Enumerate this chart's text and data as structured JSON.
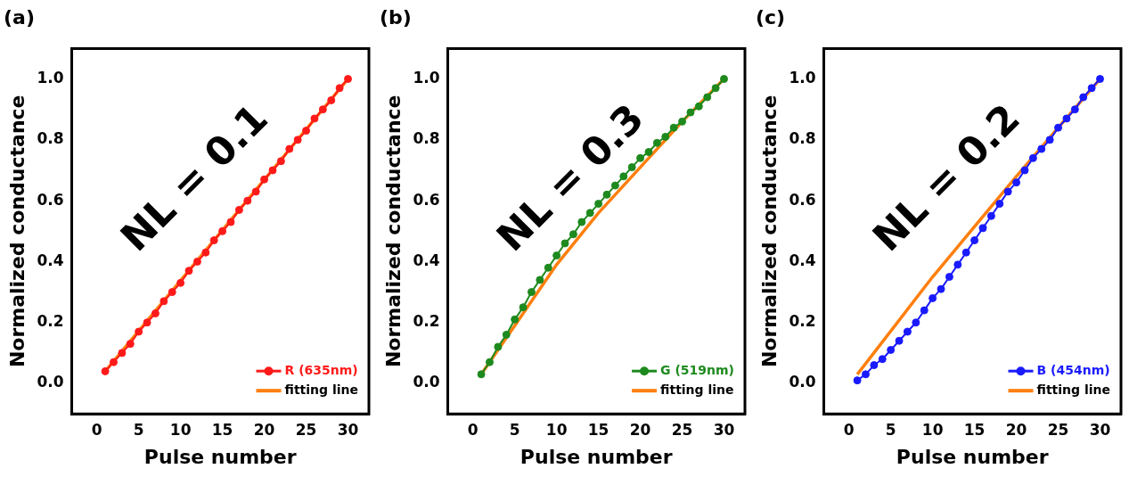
{
  "chart_data": [
    {
      "type": "line",
      "title": "(a)",
      "xlabel": "Pulse number",
      "ylabel": "Normalized conductance",
      "annotations": [
        "NL = 0.1"
      ],
      "xlim": [
        -3,
        32.5
      ],
      "xticks": [
        0,
        5,
        10,
        15,
        20,
        25,
        30
      ],
      "ylim": [
        -0.1,
        1.1
      ],
      "yticks": [
        {
          "value": 0,
          "label": "0.0"
        },
        {
          "value": 0.2,
          "label": "0.2"
        },
        {
          "value": 0.4,
          "label": "0.4"
        },
        {
          "value": 0.6,
          "label": "0.6"
        },
        {
          "value": 0.8,
          "label": "0.8"
        },
        {
          "value": 1,
          "label": "1.0"
        }
      ],
      "grid": false,
      "legend": "bottom right",
      "x": [
        1,
        2,
        3,
        4,
        5,
        6,
        7,
        8,
        9,
        10,
        11,
        12,
        13,
        14,
        15,
        16,
        17,
        18,
        19,
        20,
        21,
        22,
        23,
        24,
        25,
        26,
        27,
        28,
        29,
        30
      ],
      "series": [
        {
          "name": "R (635nm)",
          "color": "#ff1a1a",
          "marker": "circle",
          "values": [
            0.04,
            0.07,
            0.1,
            0.13,
            0.17,
            0.2,
            0.23,
            0.27,
            0.3,
            0.33,
            0.37,
            0.4,
            0.43,
            0.47,
            0.5,
            0.53,
            0.57,
            0.6,
            0.63,
            0.67,
            0.7,
            0.73,
            0.77,
            0.8,
            0.83,
            0.87,
            0.9,
            0.93,
            0.97,
            1.0
          ]
        },
        {
          "name": "fitting line",
          "color": "#ff7f0e",
          "marker": "none",
          "x": [
            1,
            30
          ],
          "values": [
            0.04,
            1.0
          ]
        }
      ]
    },
    {
      "type": "line",
      "title": "(b)",
      "xlabel": "Pulse number",
      "ylabel": "Normalized conductance",
      "annotations": [
        "NL = 0.3"
      ],
      "xlim": [
        -3,
        32.5
      ],
      "xticks": [
        0,
        5,
        10,
        15,
        20,
        25,
        30
      ],
      "ylim": [
        -0.1,
        1.1
      ],
      "yticks": [
        {
          "value": 0,
          "label": "0.0"
        },
        {
          "value": 0.2,
          "label": "0.2"
        },
        {
          "value": 0.4,
          "label": "0.4"
        },
        {
          "value": 0.6,
          "label": "0.6"
        },
        {
          "value": 0.8,
          "label": "0.8"
        },
        {
          "value": 1,
          "label": "1.0"
        }
      ],
      "grid": false,
      "legend": "bottom right",
      "x": [
        1,
        2,
        3,
        4,
        5,
        6,
        7,
        8,
        9,
        10,
        11,
        12,
        13,
        14,
        15,
        16,
        17,
        18,
        19,
        20,
        21,
        22,
        23,
        24,
        25,
        26,
        27,
        28,
        29,
        30
      ],
      "series": [
        {
          "name": "G (519nm)",
          "color": "#1e8a1e",
          "marker": "circle",
          "values": [
            0.03,
            0.07,
            0.12,
            0.16,
            0.21,
            0.25,
            0.3,
            0.34,
            0.38,
            0.42,
            0.46,
            0.49,
            0.53,
            0.56,
            0.59,
            0.62,
            0.65,
            0.68,
            0.71,
            0.74,
            0.76,
            0.79,
            0.81,
            0.84,
            0.86,
            0.89,
            0.91,
            0.94,
            0.97,
            1.0
          ]
        },
        {
          "name": "fitting line",
          "color": "#ff7f0e",
          "marker": "none",
          "x": [
            1,
            5,
            10,
            15,
            20,
            25,
            30
          ],
          "values": [
            0.03,
            0.19,
            0.39,
            0.56,
            0.71,
            0.86,
            1.0
          ]
        }
      ]
    },
    {
      "type": "line",
      "title": "(c)",
      "xlabel": "Pulse number",
      "ylabel": "Normalized conductance",
      "annotations": [
        "NL = 0.2"
      ],
      "xlim": [
        -3,
        32.5
      ],
      "xticks": [
        0,
        5,
        10,
        15,
        20,
        25,
        30
      ],
      "ylim": [
        -0.1,
        1.1
      ],
      "yticks": [
        {
          "value": 0,
          "label": "0.0"
        },
        {
          "value": 0.2,
          "label": "0.2"
        },
        {
          "value": 0.4,
          "label": "0.4"
        },
        {
          "value": 0.6,
          "label": "0.6"
        },
        {
          "value": 0.8,
          "label": "0.8"
        },
        {
          "value": 1,
          "label": "1.0"
        }
      ],
      "grid": false,
      "legend": "bottom right",
      "x": [
        1,
        2,
        3,
        4,
        5,
        6,
        7,
        8,
        9,
        10,
        11,
        12,
        13,
        14,
        15,
        16,
        17,
        18,
        19,
        20,
        21,
        22,
        23,
        24,
        25,
        26,
        27,
        28,
        29,
        30
      ],
      "series": [
        {
          "name": "B (454nm)",
          "color": "#1a1aff",
          "marker": "circle",
          "values": [
            0.01,
            0.03,
            0.06,
            0.08,
            0.11,
            0.14,
            0.17,
            0.2,
            0.24,
            0.28,
            0.31,
            0.35,
            0.39,
            0.43,
            0.47,
            0.51,
            0.55,
            0.59,
            0.63,
            0.66,
            0.7,
            0.74,
            0.77,
            0.8,
            0.84,
            0.87,
            0.9,
            0.94,
            0.97,
            1.0
          ]
        },
        {
          "name": "fitting line",
          "color": "#ff7f0e",
          "marker": "none",
          "x": [
            1,
            10,
            20,
            30
          ],
          "values": [
            0.03,
            0.35,
            0.68,
            1.0
          ]
        }
      ]
    }
  ]
}
